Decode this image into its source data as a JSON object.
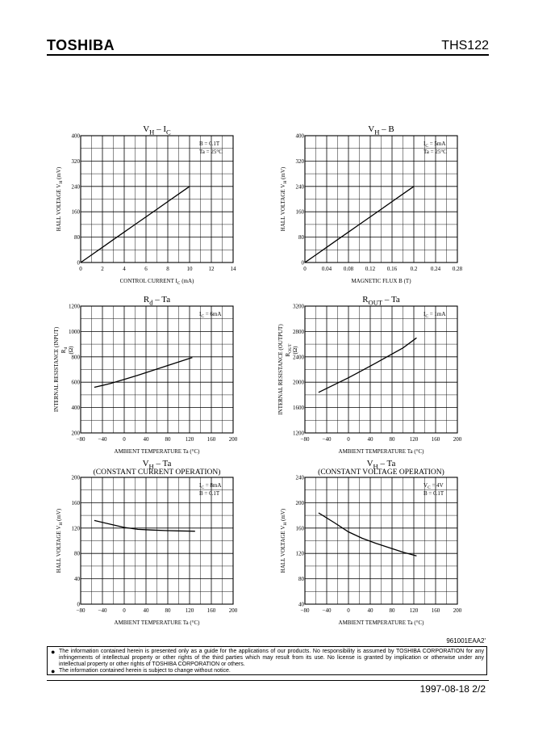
{
  "header": {
    "brand": "TOSHIBA",
    "part_number": "THS122"
  },
  "chart_data": [
    {
      "type": "line",
      "title": "V_H – I_C",
      "title_main": "V",
      "title_sub1": "H",
      "title_mid": " – I",
      "title_sub2": "C",
      "title_line2": "",
      "xlabel": "CONTROL CURRENT  I_C  (mA)",
      "xlabel_main": "CONTROL CURRENT  I",
      "xlabel_sub": "C",
      "xlabel_tail": "  (mA)",
      "ylabel": "HALL VOLTAGE  V_H   (mV)",
      "ylabel_main": "HALL VOLTAGE  V",
      "ylabel_sub": "H",
      "ylabel_tail": "   (mV)",
      "xlim": [
        0,
        14
      ],
      "ylim": [
        0,
        400
      ],
      "xticks": [
        "0",
        "2",
        "4",
        "6",
        "8",
        "10",
        "12",
        "14"
      ],
      "yticks": [
        "0",
        "80",
        "160",
        "240",
        "320",
        "400"
      ],
      "conditions": [
        "B = 0.1T",
        "Ta = 25°C"
      ],
      "series": [
        {
          "x": [
            0,
            1,
            2,
            3,
            4,
            5,
            6,
            7,
            8,
            9,
            10
          ],
          "y": [
            0,
            24,
            48,
            72,
            96,
            120,
            144,
            168,
            192,
            216,
            240
          ]
        }
      ]
    },
    {
      "type": "line",
      "title": "V_H – B",
      "title_main": "V",
      "title_sub1": "H",
      "title_mid": " – B",
      "title_sub2": "",
      "title_line2": "",
      "xlabel": "MAGNETIC FLUX  B   (T)",
      "xlabel_main": "MAGNETIC FLUX  B   (T)",
      "xlabel_sub": "",
      "xlabel_tail": "",
      "ylabel": "HALL VOLTAGE  V_H   (mV)",
      "ylabel_main": "HALL VOLTAGE  V",
      "ylabel_sub": "H",
      "ylabel_tail": "   (mV)",
      "xlim": [
        0,
        0.28
      ],
      "ylim": [
        0,
        400
      ],
      "xticks": [
        "0",
        "0.04",
        "0.08",
        "0.12",
        "0.16",
        "0.2",
        "0.24",
        "0.28"
      ],
      "yticks": [
        "0",
        "80",
        "160",
        "240",
        "320",
        "400"
      ],
      "conditions": [
        "I_C = 5mA",
        "Ta = 25°C"
      ],
      "series": [
        {
          "x": [
            0,
            0.02,
            0.04,
            0.06,
            0.08,
            0.1,
            0.12,
            0.14,
            0.16,
            0.18,
            0.2
          ],
          "y": [
            0,
            24,
            48,
            72,
            96,
            120,
            144,
            168,
            192,
            216,
            240
          ]
        }
      ]
    },
    {
      "type": "line",
      "title": "R_d – Ta",
      "title_main": "R",
      "title_sub1": "d",
      "title_mid": " – Ta",
      "title_sub2": "",
      "title_line2": "",
      "xlabel": "AMBIENT TEMPERATURE   Ta   (°C)",
      "xlabel_main": "AMBIENT TEMPERATURE   Ta   (°C)",
      "xlabel_sub": "",
      "xlabel_tail": "",
      "ylabel": "INTERNAL RESISTANCE (INPUT) R_d (Ω)",
      "ylabel_main": "INTERNAL RESISTANCE (INPUT)",
      "ylabel_line2": "R",
      "ylabel_line2_sub": "d",
      "ylabel_line3": "(Ω)",
      "xlim": [
        -80,
        200
      ],
      "ylim": [
        200,
        1200
      ],
      "xticks": [
        "−80",
        "−40",
        "0",
        "40",
        "80",
        "120",
        "160",
        "200"
      ],
      "yticks": [
        "200",
        "400",
        "600",
        "800",
        "1000",
        "1200"
      ],
      "conditions": [
        "I_C = 6mA"
      ],
      "series": [
        {
          "x": [
            -55,
            -25,
            0,
            25,
            50,
            75,
            100,
            125
          ],
          "y": [
            560,
            590,
            622,
            655,
            690,
            725,
            760,
            795
          ]
        }
      ]
    },
    {
      "type": "line",
      "title": "R_OUT – Ta",
      "title_main": "R",
      "title_sub1": "OUT",
      "title_mid": " – Ta",
      "title_sub2": "",
      "title_line2": "",
      "xlabel": "AMBIENT TEMPERATURE   Ta   (°C)",
      "xlabel_main": "AMBIENT TEMPERATURE   Ta   (°C)",
      "xlabel_sub": "",
      "xlabel_tail": "",
      "ylabel": "INTERNAL RESISTANCE (OUTPUT) R_OUT (Ω)",
      "ylabel_main": "INTERNAL RESISTANCE (OUTPUT)",
      "ylabel_line2": "R",
      "ylabel_line2_sub": "OUT",
      "ylabel_line3": "(Ω)",
      "xlim": [
        -80,
        200
      ],
      "ylim": [
        1200,
        3200
      ],
      "xticks": [
        "−80",
        "−40",
        "0",
        "40",
        "80",
        "120",
        "160",
        "200"
      ],
      "yticks": [
        "1200",
        "1600",
        "2000",
        "2400",
        "2800",
        "3200"
      ],
      "conditions": [
        "I_C = 1mA"
      ],
      "series": [
        {
          "x": [
            -55,
            -25,
            0,
            25,
            50,
            75,
            100,
            125
          ],
          "y": [
            1840,
            1965,
            2070,
            2185,
            2300,
            2420,
            2540,
            2700
          ]
        }
      ]
    },
    {
      "type": "line",
      "title": "V_H – Ta (CONSTANT CURRENT OPERATION)",
      "title_main": "V",
      "title_sub1": "H",
      "title_mid": " – Ta",
      "title_sub2": "",
      "title_line2": "(CONSTANT CURRENT OPERATION)",
      "xlabel": "AMBIENT TEMPERATURE   Ta   (°C)",
      "xlabel_main": "AMBIENT TEMPERATURE   Ta   (°C)",
      "xlabel_sub": "",
      "xlabel_tail": "",
      "ylabel": "HALL VOLTAGE  V_H   (mV)",
      "ylabel_main": "HALL VOLTAGE  V",
      "ylabel_sub": "H",
      "ylabel_tail": "   (mV)",
      "xlim": [
        -80,
        200
      ],
      "ylim": [
        0,
        200
      ],
      "xticks": [
        "−80",
        "−40",
        "0",
        "40",
        "80",
        "120",
        "160",
        "200"
      ],
      "yticks": [
        "0",
        "40",
        "80",
        "120",
        "160",
        "200"
      ],
      "conditions": [
        "I_C = 8mA",
        "B = 0.1T"
      ],
      "series": [
        {
          "x": [
            -55,
            -25,
            0,
            25,
            50,
            75,
            100,
            130
          ],
          "y": [
            132,
            126,
            121,
            118,
            117,
            116,
            115.5,
            115
          ]
        }
      ]
    },
    {
      "type": "line",
      "title": "V_H – Ta (CONSTANT VOLTAGE OPERATION)",
      "title_main": "V",
      "title_sub1": "H",
      "title_mid": " – Ta",
      "title_sub2": "",
      "title_line2": "(CONSTANT VOLTAGE OPERATION)",
      "xlabel": "AMBIENT TEMPERATURE   Ta   (°C)",
      "xlabel_main": "AMBIENT TEMPERATURE   Ta   (°C)",
      "xlabel_sub": "",
      "xlabel_tail": "",
      "ylabel": "HALL VOLTAGE  V_H   (mV)",
      "ylabel_main": "HALL VOLTAGE  V",
      "ylabel_sub": "H",
      "ylabel_tail": "   (mV)",
      "xlim": [
        -80,
        200
      ],
      "ylim": [
        40,
        240
      ],
      "xticks": [
        "−80",
        "−40",
        "0",
        "40",
        "80",
        "120",
        "160",
        "200"
      ],
      "yticks": [
        "40",
        "80",
        "120",
        "160",
        "200",
        "240"
      ],
      "conditions": [
        "V_C = 4V",
        "B = 0.1T"
      ],
      "series": [
        {
          "x": [
            -55,
            -25,
            0,
            25,
            50,
            75,
            100,
            125
          ],
          "y": [
            184,
            168,
            154,
            144,
            136,
            129,
            122,
            116
          ]
        }
      ]
    }
  ],
  "document_number": "961001EAA2'",
  "disclaimer": [
    "The information contained herein is presented only as a guide for the applications of our products. No responsibility is assumed by TOSHIBA CORPORATION for any infringements of intellectual property or other rights of the third parties which may result from its use. No license is granted by implication or otherwise under any intellectual property or other rights of TOSHIBA CORPORATION or others.",
    "The information contained herein is subject to change without notice."
  ],
  "footer": {
    "date": "1997-08-18",
    "page": "2/2",
    "date_page": "1997-08-18   2/2"
  }
}
